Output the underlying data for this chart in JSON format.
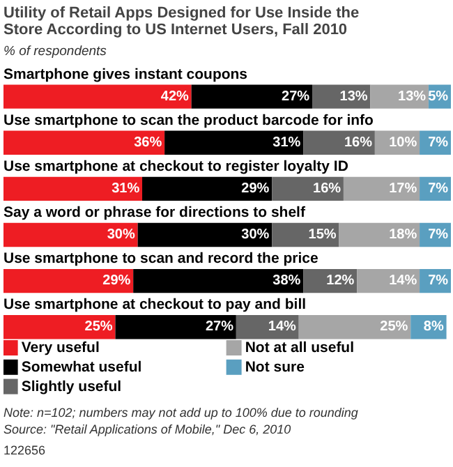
{
  "chart_data": {
    "type": "bar",
    "orientation": "horizontal",
    "stacked": true,
    "title": "Utility of Retail Apps Designed for Use Inside the Store According to US Internet Users, Fall 2010",
    "subtitle": "% of respondents",
    "categories": [
      "Smartphone gives instant coupons",
      "Use smartphone to scan the product barcode for info",
      "Use smartphone at checkout to register loyalty ID",
      "Say a word or phrase for directions to shelf",
      "Use smartphone to scan and record the price",
      "Use smartphone at checkout to pay and bill"
    ],
    "series": [
      {
        "name": "Very useful",
        "color": "#ee1d23",
        "values": [
          42,
          36,
          31,
          30,
          29,
          25
        ],
        "value_labels": [
          "42%",
          "36%",
          "31%",
          "30%",
          "29%",
          "25%"
        ]
      },
      {
        "name": "Somewhat useful",
        "color": "#000000",
        "values": [
          27,
          31,
          29,
          30,
          38,
          27
        ],
        "value_labels": [
          "27%",
          "31%",
          "29%",
          "30%",
          "38%",
          "27%"
        ]
      },
      {
        "name": "Slightly useful",
        "color": "#666666",
        "values": [
          13,
          16,
          16,
          15,
          12,
          14
        ],
        "value_labels": [
          "13%",
          "16%",
          "16%",
          "15%",
          "12%",
          "14%"
        ]
      },
      {
        "name": "Not at all useful",
        "color": "#a6a6a6",
        "values": [
          13,
          10,
          17,
          18,
          14,
          25
        ],
        "value_labels": [
          "13%",
          "10%",
          "17%",
          "18%",
          "14%",
          "25%"
        ]
      },
      {
        "name": "Not sure",
        "color": "#5a9fc0",
        "values": [
          5,
          7,
          7,
          7,
          7,
          8
        ],
        "value_labels": [
          "5%",
          "7%",
          "7%",
          "7%",
          "7%",
          "8%"
        ]
      }
    ],
    "legend": "bottom",
    "annotations": [
      "Note: n=102; numbers may not add up to 100% due to rounding",
      "Source: \"Retail Applications of Mobile,\" Dec 6, 2010",
      "122656"
    ]
  }
}
